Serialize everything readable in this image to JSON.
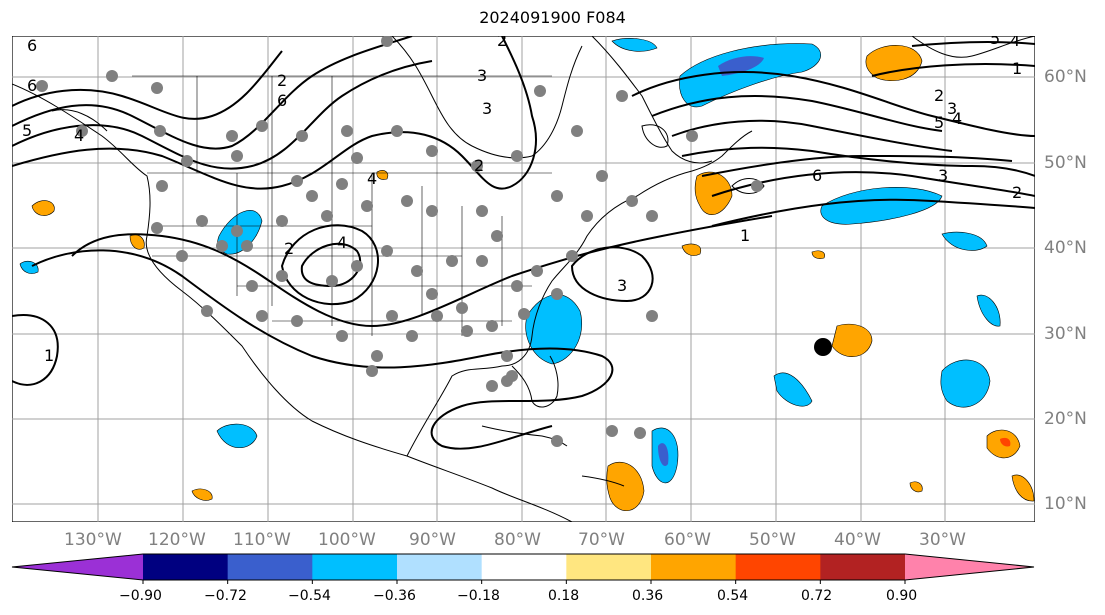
{
  "title": "2024091900 F084",
  "lon_labels": [
    "130°W",
    "120°W",
    "110°W",
    "100°W",
    "90°W",
    "80°W",
    "70°W",
    "60°W",
    "50°W",
    "40°W",
    "30°W"
  ],
  "lat_labels": [
    "60°N",
    "50°N",
    "40°N",
    "30°N",
    "20°N",
    "10°N"
  ],
  "colorbar": {
    "ticks": [
      "−0.90",
      "−0.72",
      "−0.54",
      "−0.36",
      "−0.18",
      "0.18",
      "0.36",
      "0.54",
      "0.72",
      "0.90"
    ],
    "colors": [
      "#9b30d6",
      "#000080",
      "#3a5fcd",
      "#00bfff",
      "#b0e0ff",
      "#ffffff",
      "#ffe680",
      "#ffa500",
      "#ff4500",
      "#b22222",
      "#ff82ab"
    ]
  },
  "contour_labels": [
    "6",
    "6",
    "5",
    "4",
    "6",
    "3",
    "2",
    "2",
    "4",
    "4",
    "2",
    "2",
    "3",
    "1",
    "1",
    "6",
    "3",
    "2",
    "1",
    "2",
    "3",
    "5",
    "4",
    "3",
    "5",
    "4"
  ],
  "colors": {
    "land": "#000000",
    "grid": "#a0a0a0",
    "station": "#808080",
    "marker": "#000000"
  }
}
